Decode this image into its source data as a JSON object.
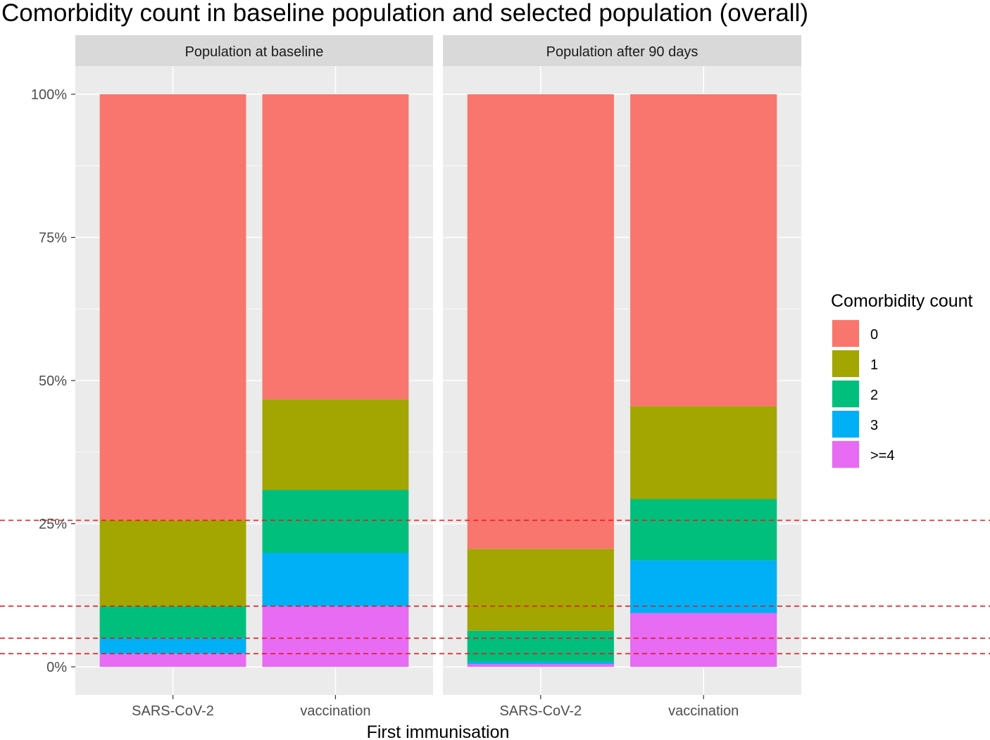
{
  "chart_data": {
    "type": "bar",
    "stacked": true,
    "title": "Comorbidity count in baseline population and selected population (overall)",
    "xlabel": "First immunisation",
    "ylabel": "",
    "ylim": [
      0,
      1
    ],
    "y_ticks": [
      0,
      0.25,
      0.5,
      0.75,
      1
    ],
    "y_tick_labels": [
      "0%",
      "25%",
      "50%",
      "75%",
      "100%"
    ],
    "categories": [
      "SARS-CoV-2",
      "vaccination"
    ],
    "legend": {
      "title": "Comorbidity count",
      "position": "right",
      "entries": [
        {
          "label": "0",
          "color": "#F8766D"
        },
        {
          "label": "1",
          "color": "#A3A500"
        },
        {
          "label": "2",
          "color": "#00BF7D"
        },
        {
          "label": "3",
          "color": "#00B0F6"
        },
        {
          "label": ">=4",
          "color": "#E76BF3"
        }
      ]
    },
    "panels": [
      {
        "label": "Population at baseline",
        "series": [
          {
            "name": ">=4",
            "values": [
              0.023,
              0.106
            ]
          },
          {
            "name": "3",
            "values": [
              0.027,
              0.093
            ]
          },
          {
            "name": "2",
            "values": [
              0.056,
              0.11
            ]
          },
          {
            "name": "1",
            "values": [
              0.15,
              0.158
            ]
          },
          {
            "name": "0",
            "values": [
              0.744,
              0.533
            ]
          }
        ]
      },
      {
        "label": "Population after 90 days",
        "series": [
          {
            "name": ">=4",
            "values": [
              0.005,
              0.094
            ]
          },
          {
            "name": "3",
            "values": [
              0.004,
              0.092
            ]
          },
          {
            "name": "2",
            "values": [
              0.054,
              0.107
            ]
          },
          {
            "name": "1",
            "values": [
              0.143,
              0.162
            ]
          },
          {
            "name": "0",
            "values": [
              0.794,
              0.545
            ]
          }
        ]
      }
    ],
    "reference_lines": {
      "style": "dashed",
      "color": "#E41A1C",
      "y": [
        0.023,
        0.05,
        0.106,
        0.256
      ]
    }
  }
}
